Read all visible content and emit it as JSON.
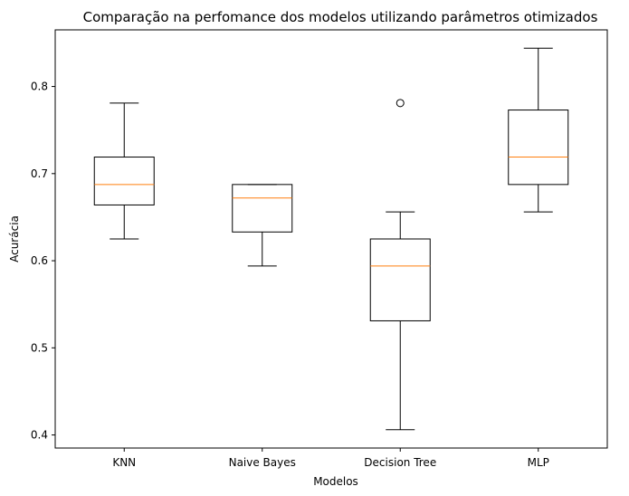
{
  "chart_data": {
    "type": "box",
    "title": "Comparação na perfomance dos modelos utilizando parâmetros otimizados",
    "xlabel": "Modelos",
    "ylabel": "Acurácia",
    "ylim": [
      0.385,
      0.865
    ],
    "yticks": [
      "0.4",
      "0.5",
      "0.6",
      "0.7",
      "0.8"
    ],
    "categories": [
      "KNN",
      "Naive Bayes",
      "Decision Tree",
      "MLP"
    ],
    "boxes": [
      {
        "name": "KNN",
        "whisker_low": 0.625,
        "q1": 0.664,
        "median": 0.6875,
        "q3": 0.719,
        "whisker_high": 0.781,
        "outliers": []
      },
      {
        "name": "Naive Bayes",
        "whisker_low": 0.594,
        "q1": 0.633,
        "median": 0.672,
        "q3": 0.6875,
        "whisker_high": 0.6875,
        "outliers": []
      },
      {
        "name": "Decision Tree",
        "whisker_low": 0.406,
        "q1": 0.531,
        "median": 0.594,
        "q3": 0.625,
        "whisker_high": 0.656,
        "outliers": [
          0.781
        ]
      },
      {
        "name": "MLP",
        "whisker_low": 0.656,
        "q1": 0.6875,
        "median": 0.719,
        "q3": 0.773,
        "whisker_high": 0.844,
        "outliers": []
      }
    ],
    "colors": {
      "box": "#000000",
      "median": "#ff7f0e",
      "outlier": "#000000"
    },
    "grid": false
  }
}
